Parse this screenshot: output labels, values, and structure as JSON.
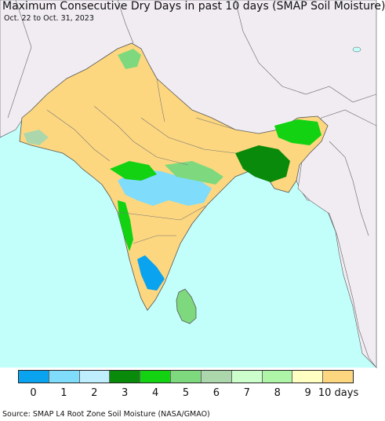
{
  "title": "Maximum Consecutive Dry Days in past 10 days (SMAP Soil Moisture)",
  "subtitle": "Oct. 22 to Oct. 31, 2023",
  "source": "Source: SMAP L4 Root Zone Soil Moisture (NASA/GMAO)",
  "legend": {
    "labels": [
      "0",
      "1",
      "2",
      "3",
      "4",
      "5",
      "6",
      "7",
      "8",
      "9",
      "10 days"
    ],
    "colors": [
      "#0aa3ef",
      "#7fdcfa",
      "#bfefff",
      "#0a8a0a",
      "#12d212",
      "#7ed97e",
      "#acd7ac",
      "#ccffcc",
      "#aef5a8",
      "#ffffc2",
      "#fdd77f"
    ]
  },
  "map_colors": {
    "ocean": "#c2fffb",
    "outside_land": "#f0ecf2",
    "dry_land": "#fdd77f",
    "borders": "#555555"
  }
}
